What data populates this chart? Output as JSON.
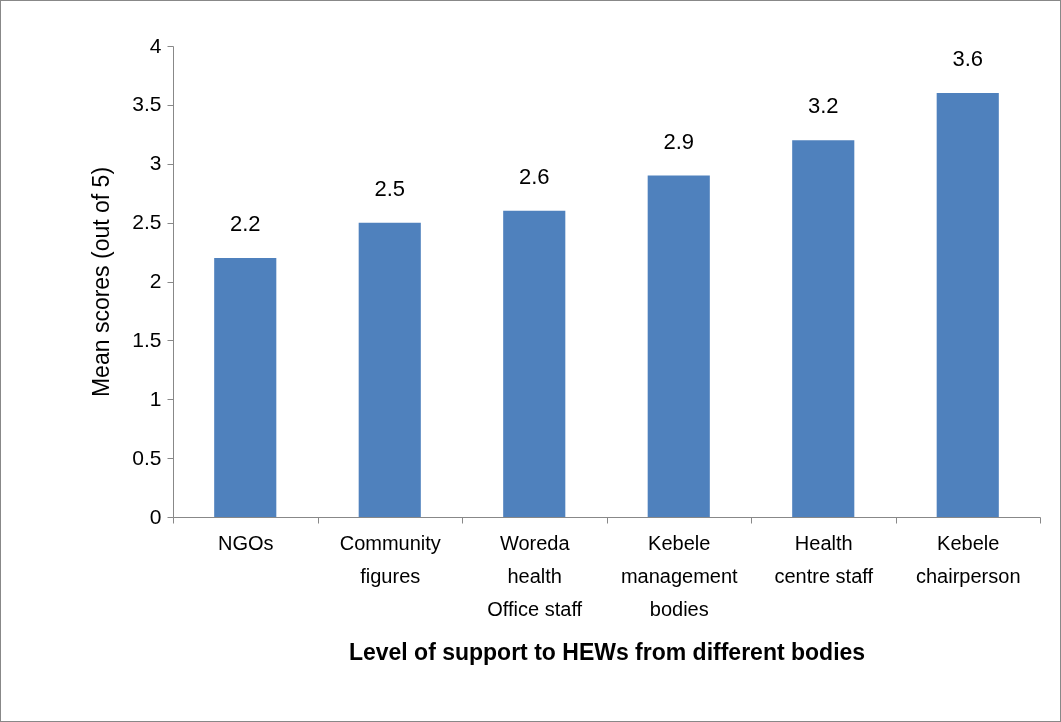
{
  "chart_data": {
    "type": "bar",
    "xlabel": "Level of support to HEWs from different bodies",
    "ylabel": "Mean scores (out of 5)",
    "categories": [
      "NGOs",
      "Community figures",
      "Woreda health Office staff",
      "Kebele management bodies",
      "Health centre staff",
      "Kebele chairperson"
    ],
    "values": [
      2.2,
      2.5,
      2.6,
      2.9,
      3.2,
      3.6
    ],
    "color": "#4f81bd",
    "ylim": [
      0,
      4
    ],
    "yticks": [
      0,
      0.5,
      1,
      1.5,
      2,
      2.5,
      3,
      3.5,
      4
    ],
    "grid": false,
    "data_labels": true
  }
}
